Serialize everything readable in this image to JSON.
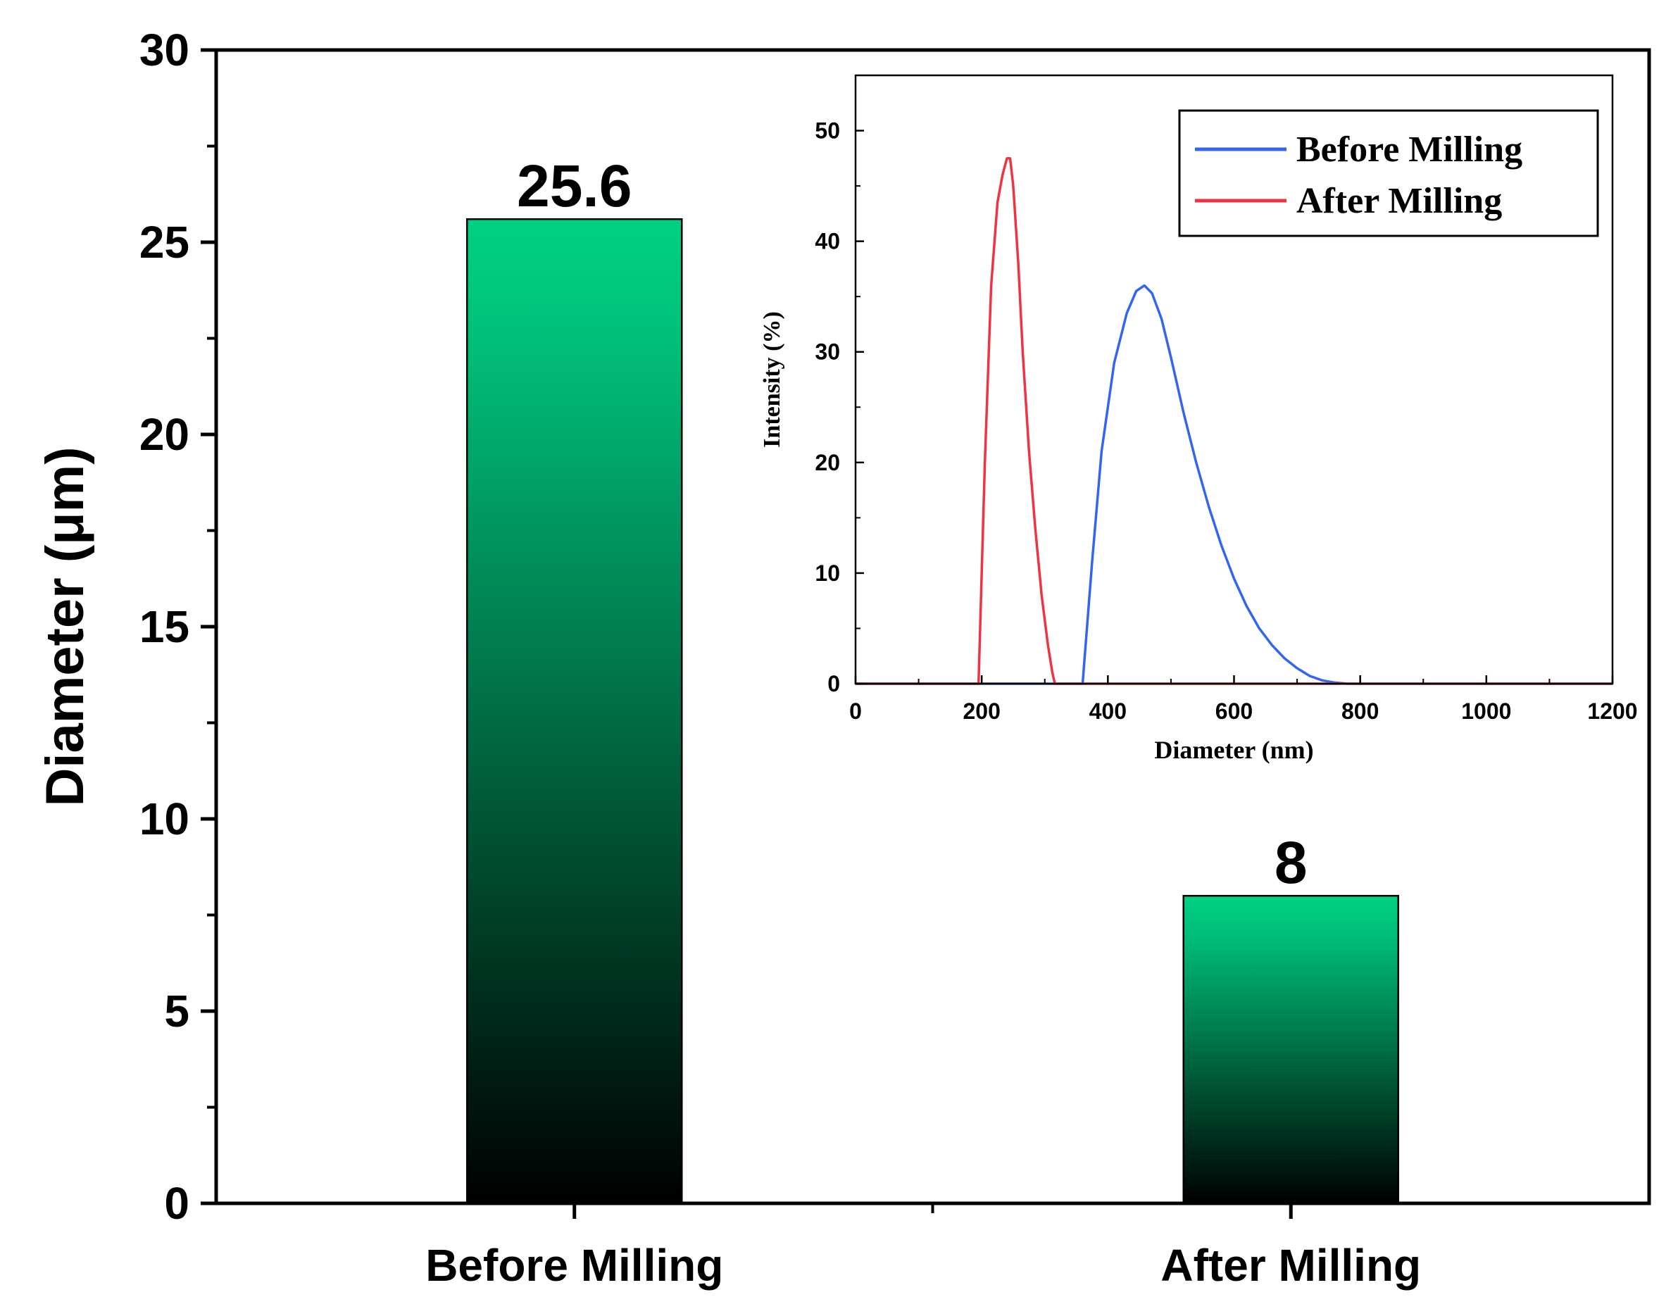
{
  "chart_data": [
    {
      "type": "bar",
      "title": "",
      "xlabel": "",
      "ylabel": "Diameter (μm)",
      "categories": [
        "Before Milling",
        "After Milling"
      ],
      "values": [
        25.6,
        8
      ],
      "value_labels": [
        "25.6",
        "8"
      ],
      "ylim": [
        0,
        30
      ],
      "yticks": [
        0,
        5,
        10,
        15,
        20,
        25,
        30
      ],
      "grid": false,
      "colors": {
        "bar_top": "#00d084",
        "bar_bottom": "#000000",
        "axis": "#000000"
      }
    },
    {
      "type": "line",
      "title": "",
      "xlabel": "Diameter (nm)",
      "ylabel": "Intensity (%)",
      "xlim": [
        0,
        1200
      ],
      "ylim": [
        0,
        55
      ],
      "xticks": [
        0,
        200,
        400,
        600,
        800,
        1000,
        1200
      ],
      "yticks": [
        0,
        10,
        20,
        30,
        40,
        50
      ],
      "grid": false,
      "legend": "top-right",
      "series": [
        {
          "name": "Before Milling",
          "color": "#3366ee",
          "x": [
            0,
            360,
            362,
            375,
            390,
            410,
            430,
            445,
            458,
            470,
            485,
            500,
            520,
            540,
            560,
            580,
            600,
            620,
            640,
            660,
            680,
            700,
            720,
            740,
            760,
            780,
            800,
            1200
          ],
          "y": [
            0,
            0,
            1.5,
            11,
            21,
            29,
            33.5,
            35.5,
            36,
            35.3,
            33,
            29.5,
            24.5,
            20,
            16,
            12.5,
            9.5,
            7,
            5,
            3.5,
            2.3,
            1.4,
            0.7,
            0.3,
            0.1,
            0,
            0,
            0
          ]
        },
        {
          "name": "After Milling",
          "color": "#ee3344",
          "x": [
            0,
            195,
            198,
            205,
            215,
            225,
            233,
            240,
            245,
            250,
            258,
            265,
            275,
            285,
            295,
            305,
            312,
            316,
            1200
          ],
          "y": [
            0,
            0,
            6,
            20,
            36,
            43.5,
            46,
            47.5,
            47.5,
            45,
            38,
            30,
            21,
            14,
            8,
            3.5,
            1,
            0,
            0
          ]
        }
      ]
    }
  ]
}
